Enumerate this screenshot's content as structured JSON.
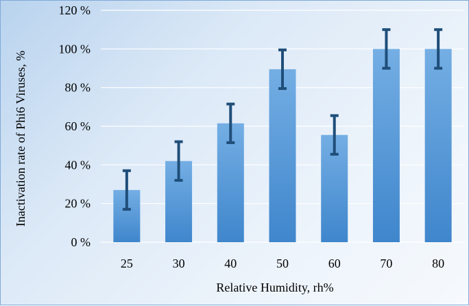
{
  "chart_data": {
    "type": "bar",
    "title": "",
    "xlabel": "Relative Humidity, rh%",
    "ylabel": "Inactivation rate of Phi6 Viruses, %",
    "categories": [
      "25",
      "30",
      "40",
      "50",
      "60",
      "70",
      "80"
    ],
    "values": [
      27,
      42,
      61.5,
      89.5,
      55.5,
      100,
      100
    ],
    "error": [
      10,
      10,
      10,
      10,
      10,
      10,
      10
    ],
    "ylim": [
      0,
      120
    ],
    "yticks": [
      0,
      20,
      40,
      60,
      80,
      100,
      120
    ],
    "ytick_labels": [
      "0 %",
      "20 %",
      "40 %",
      "60 %",
      "80 %",
      "100 %",
      "120 %"
    ],
    "grid": true,
    "legend": "none",
    "colors": {
      "bar_top": "#74aee4",
      "bar_bottom": "#3f86cc",
      "error_bar": "#1f4e79",
      "grid": "#ffffff"
    }
  }
}
